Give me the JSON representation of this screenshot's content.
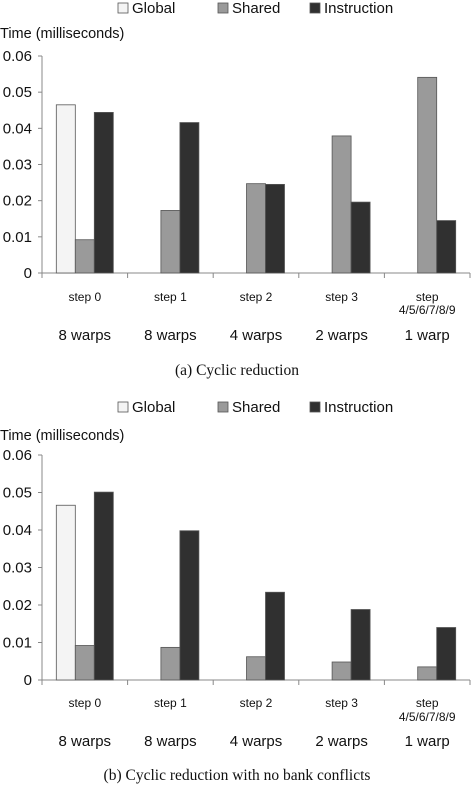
{
  "figure": {
    "colors": {
      "global": "#f4f4f4",
      "shared": "#9a9a9a",
      "instruction": "#303030",
      "axis": "#888888",
      "outline": "#555555"
    }
  },
  "chart_data": [
    {
      "type": "bar",
      "caption": "(a)  Cyclic reduction",
      "ylabel": "Time (milliseconds)",
      "ylim": [
        0,
        0.06
      ],
      "yticks": [
        "0",
        "0.01",
        "0.02",
        "0.03",
        "0.04",
        "0.05",
        "0.06"
      ],
      "grid": false,
      "legend_position": "top",
      "categories": [
        "step 0",
        "step 1",
        "step 2",
        "step 3",
        "step 4/5/6/7/8/9"
      ],
      "category_lines": [
        [
          "step 0"
        ],
        [
          "step 1"
        ],
        [
          "step 2"
        ],
        [
          "step 3"
        ],
        [
          "step",
          "4/5/6/7/8/9"
        ]
      ],
      "warps": [
        "8 warps",
        "8 warps",
        "4 warps",
        "2 warps",
        "1 warp"
      ],
      "series": [
        {
          "name": "Global",
          "values": [
            0.0465,
            null,
            null,
            null,
            null
          ]
        },
        {
          "name": "Shared",
          "values": [
            0.0092,
            0.0173,
            0.0247,
            0.0379,
            0.0541
          ]
        },
        {
          "name": "Instruction",
          "values": [
            0.0444,
            0.0416,
            0.0245,
            0.0196,
            0.0145
          ]
        }
      ]
    },
    {
      "type": "bar",
      "caption": "(b)  Cyclic reduction with no bank conflicts",
      "ylabel": "Time (milliseconds)",
      "ylim": [
        0,
        0.06
      ],
      "yticks": [
        "0",
        "0.01",
        "0.02",
        "0.03",
        "0.04",
        "0.05",
        "0.06"
      ],
      "grid": false,
      "legend_position": "top",
      "categories": [
        "step 0",
        "step 1",
        "step 2",
        "step 3",
        "step 4/5/6/7/8/9"
      ],
      "category_lines": [
        [
          "step 0"
        ],
        [
          "step 1"
        ],
        [
          "step 2"
        ],
        [
          "step 3"
        ],
        [
          "step",
          "4/5/6/7/8/9"
        ]
      ],
      "warps": [
        "8 warps",
        "8 warps",
        "4 warps",
        "2 warps",
        "1 warp"
      ],
      "series": [
        {
          "name": "Global",
          "values": [
            0.0466,
            null,
            null,
            null,
            null
          ]
        },
        {
          "name": "Shared",
          "values": [
            0.0092,
            0.0087,
            0.0062,
            0.0048,
            0.0035
          ]
        },
        {
          "name": "Instruction",
          "values": [
            0.0501,
            0.0398,
            0.0234,
            0.0188,
            0.014
          ]
        }
      ]
    }
  ]
}
